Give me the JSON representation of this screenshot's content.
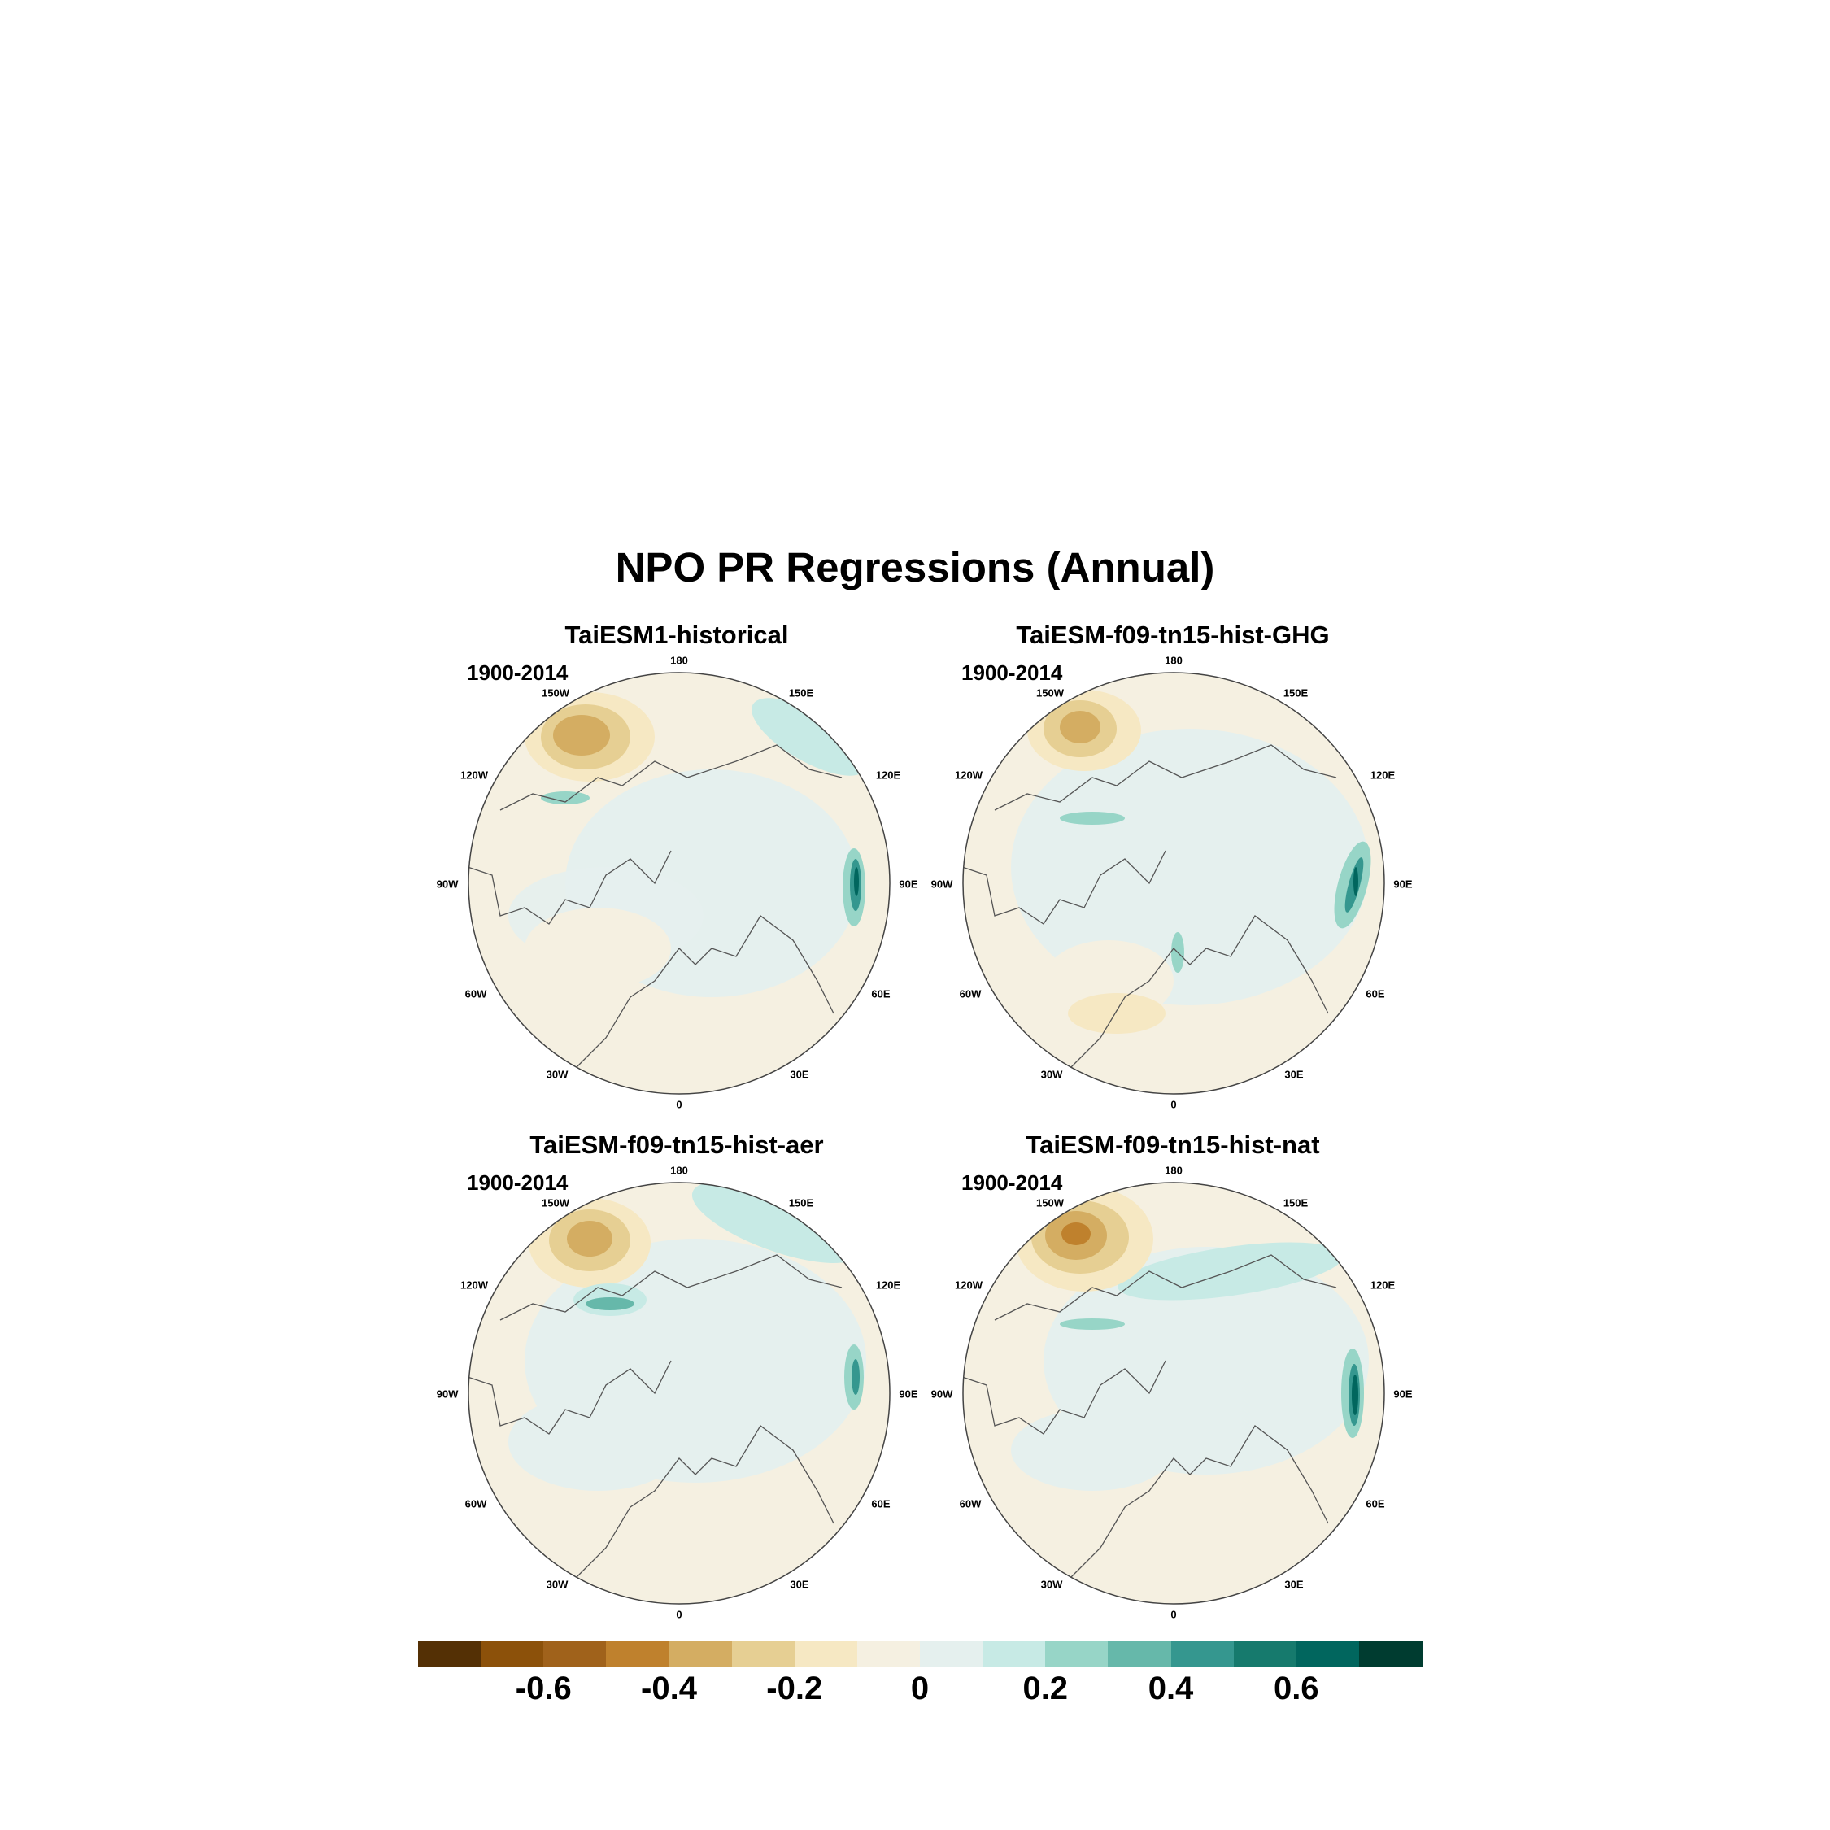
{
  "title": "NPO PR Regressions (Annual)",
  "panels": [
    {
      "name": "TaiESM1-historical",
      "period": "1900-2014"
    },
    {
      "name": "TaiESM-f09-tn15-hist-GHG",
      "period": "1900-2014"
    },
    {
      "name": "TaiESM-f09-tn15-hist-aer",
      "period": "1900-2014"
    },
    {
      "name": "TaiESM-f09-tn15-hist-nat",
      "period": "1900-2014"
    }
  ],
  "longitude_labels": [
    "180",
    "150E",
    "120E",
    "90E",
    "60E",
    "30E",
    "0",
    "30W",
    "60W",
    "90W",
    "120W",
    "150W"
  ],
  "colorbar": {
    "colors": [
      "#543005",
      "#8c510a",
      "#a0621b",
      "#bf812d",
      "#d4ad62",
      "#e6cf93",
      "#f6e8c3",
      "#f5f0e1",
      "#e5f0ee",
      "#c7eae5",
      "#97d5c7",
      "#66b8aa",
      "#35978f",
      "#167a6d",
      "#01665e",
      "#003c30"
    ],
    "tick_labels": [
      "-0.6",
      "-0.4",
      "-0.2",
      "0",
      "0.2",
      "0.4",
      "0.6"
    ]
  }
}
